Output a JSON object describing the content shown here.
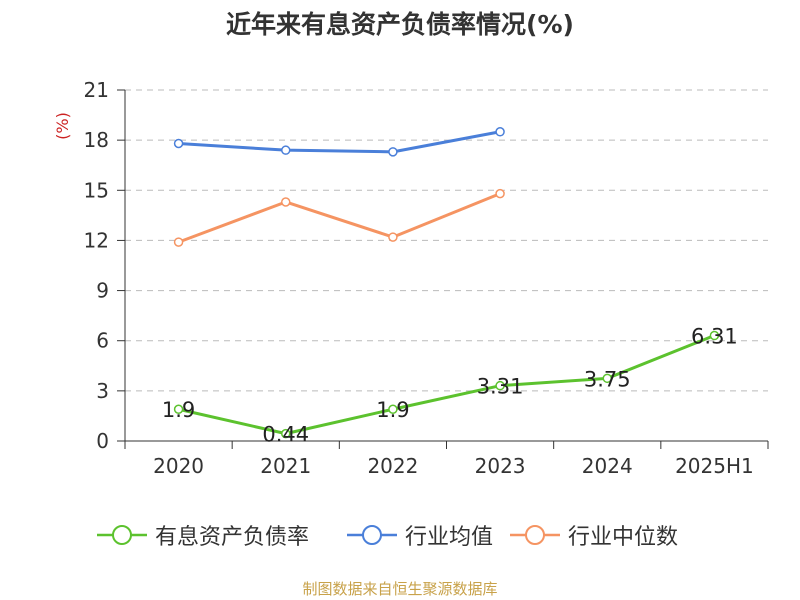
{
  "chart_data": {
    "type": "line",
    "title": "近年来有息资产负债率情况(%)",
    "ylabel": "(%)",
    "categories": [
      "2020",
      "2021",
      "2022",
      "2023",
      "2024",
      "2025H1"
    ],
    "yticks": [
      "0",
      "3",
      "6",
      "9",
      "12",
      "15",
      "18",
      "21"
    ],
    "ylim": [
      0,
      21
    ],
    "grid": true,
    "legend_position": "bottom",
    "series": [
      {
        "name": "有息资产负债率",
        "color": "#5cc22e",
        "values": [
          1.9,
          0.44,
          1.9,
          3.31,
          3.75,
          6.31
        ],
        "labels": [
          "1.9",
          "0.44",
          "1.9",
          "3.31",
          "3.75",
          "6.31"
        ]
      },
      {
        "name": "行业均值",
        "color": "#4a7fd9",
        "values": [
          17.8,
          17.4,
          17.3,
          18.5,
          null,
          null
        ]
      },
      {
        "name": "行业中位数",
        "color": "#f59462",
        "values": [
          11.9,
          14.3,
          12.2,
          14.8,
          null,
          null
        ]
      }
    ]
  },
  "footer": "制图数据来自恒生聚源数据库"
}
